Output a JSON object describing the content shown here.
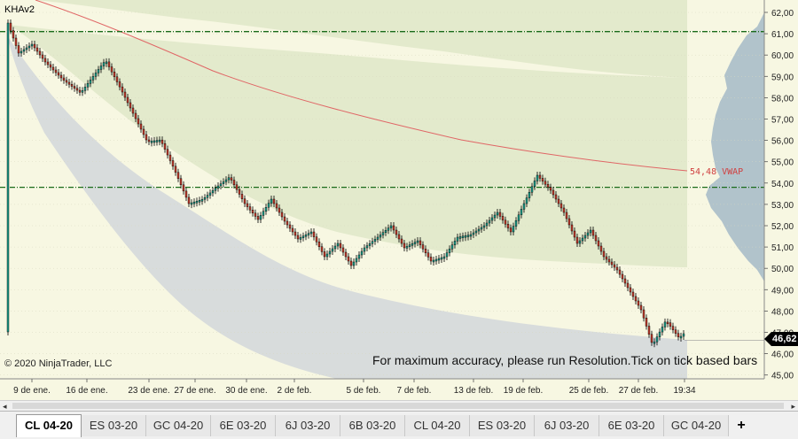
{
  "chart": {
    "indicator_label": "KHAv2",
    "copyright": "© 2020 NinjaTrader, LLC",
    "notice": "For maximum accuracy, please run Resolution.Tick on tick based bars",
    "last_price_tag": "46,62",
    "vwap_label": "54,48 VWAP",
    "colors": {
      "background": "#f7f7e2",
      "upper_band": "#dfe8c8",
      "lower_band": "#d4d8dc",
      "vwap_line": "#e06666",
      "level_line": "#1a6b1a",
      "up_candle": "#1a9a88",
      "down_candle": "#c0392b",
      "volume_profile": "#9fb5c6"
    },
    "x_labels": [
      "9 de ene.",
      "16 de ene.",
      "23 de ene.",
      "27 de ene.",
      "30 de ene.",
      "2 de feb.",
      "5 de feb.",
      "7 de feb.",
      "13 de feb.",
      "19 de feb.",
      "25 de feb.",
      "27 de feb.",
      "19:34"
    ],
    "y_labels": [
      "62,00",
      "61,00",
      "60,00",
      "59,00",
      "58,00",
      "57,00",
      "56,00",
      "55,00",
      "54,00",
      "53,00",
      "52,00",
      "51,00",
      "50,00",
      "49,00",
      "48,00",
      "47,00",
      "46,00",
      "45,00"
    ],
    "levels": [
      61.1,
      53.8
    ],
    "vwap": 54.48,
    "last_price": 46.62
  },
  "tabs": [
    {
      "label": "CL 04-20",
      "active": true
    },
    {
      "label": "ES 03-20",
      "active": false
    },
    {
      "label": "GC 04-20",
      "active": false
    },
    {
      "label": "6E 03-20",
      "active": false
    },
    {
      "label": "6J 03-20",
      "active": false
    },
    {
      "label": "6B 03-20",
      "active": false
    },
    {
      "label": "CL 04-20",
      "active": false
    },
    {
      "label": "ES 03-20",
      "active": false
    },
    {
      "label": "6J 03-20",
      "active": false
    },
    {
      "label": "6E 03-20",
      "active": false
    },
    {
      "label": "GC 04-20",
      "active": false
    }
  ],
  "add_tab_label": "+",
  "scroll": {
    "left_arrow": "◂",
    "right_arrow": "▸"
  }
}
